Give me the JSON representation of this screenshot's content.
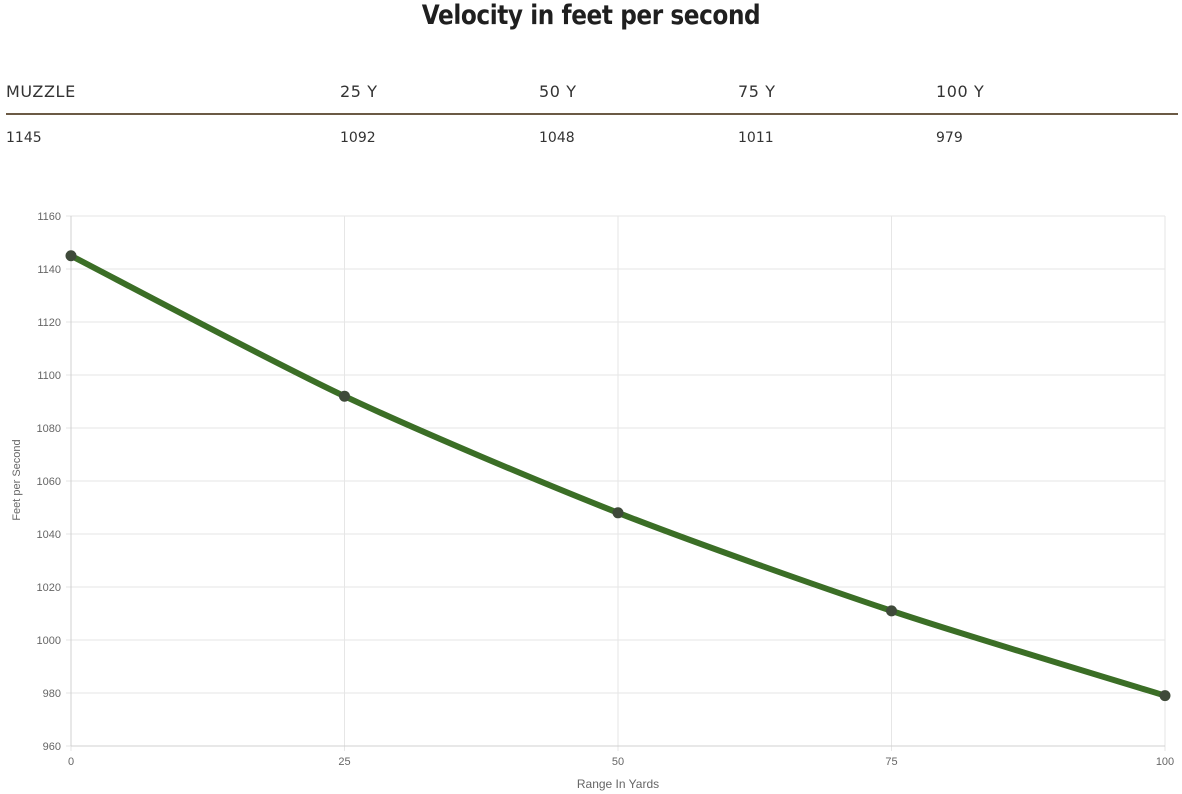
{
  "title": "Velocity in feet per second",
  "table": {
    "headers": [
      "MUZZLE",
      "25 Y",
      "50 Y",
      "75 Y",
      "100 Y"
    ],
    "values": [
      "1145",
      "1092",
      "1048",
      "1011",
      "979"
    ]
  },
  "chart_data": {
    "type": "line",
    "x": [
      0,
      25,
      50,
      75,
      100
    ],
    "series": [
      {
        "values": [
          1145,
          1092,
          1048,
          1011,
          979
        ]
      }
    ],
    "xlabel": "Range In Yards",
    "ylabel": "Feet per Second",
    "xlim": [
      0,
      100
    ],
    "ylim": [
      960,
      1160
    ],
    "xticks": [
      0,
      25,
      50,
      75,
      100
    ],
    "yticks": [
      960,
      980,
      1000,
      1020,
      1040,
      1060,
      1080,
      1100,
      1120,
      1140,
      1160
    ],
    "grid": true,
    "legend": "none",
    "colors": {
      "line": "#3b6e26",
      "point": "#3f4a3a",
      "grid": "#e6e6e6",
      "axis_text": "#666666"
    }
  }
}
